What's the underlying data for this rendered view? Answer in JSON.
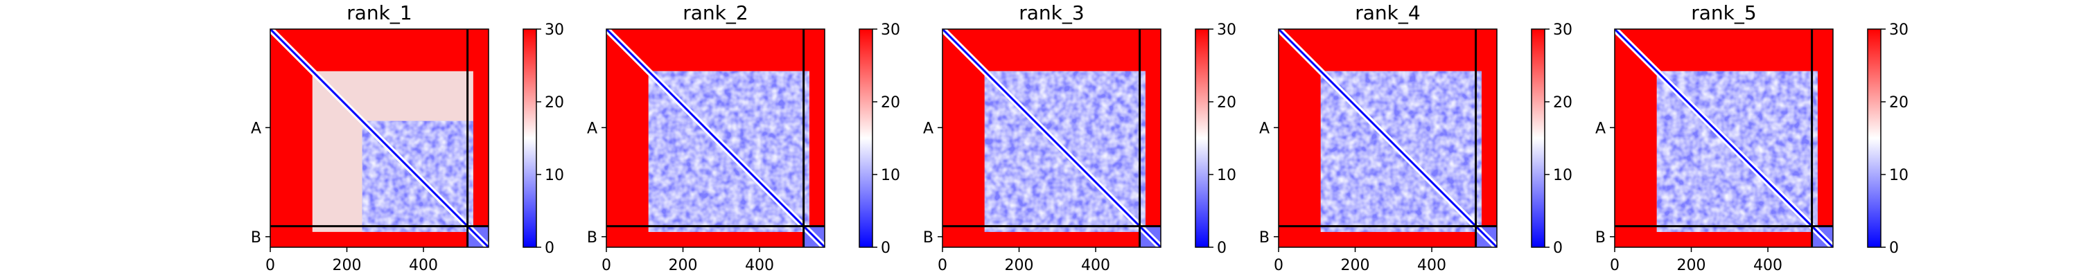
{
  "chart_data": {
    "type": "heatmap",
    "colormap": {
      "name": "bwr",
      "min": 0,
      "max": 30,
      "ticks": [
        0,
        10,
        20,
        30
      ],
      "colors": {
        "low": "#0000ff",
        "mid": "#ffffff",
        "high": "#ff0000"
      }
    },
    "x_range": [
      0,
      570
    ],
    "x_ticks": [
      0,
      200,
      400
    ],
    "chains": [
      {
        "label": "A",
        "start": 0,
        "end": 515
      },
      {
        "label": "B",
        "start": 515,
        "end": 570
      }
    ],
    "chain_boundary": 515,
    "panels": [
      {
        "title": "rank_1",
        "high_confidence_block": [
          240,
          530
        ],
        "mid_block": [
          110,
          530
        ]
      },
      {
        "title": "rank_2",
        "high_confidence_block": [
          110,
          530
        ],
        "mid_block": [
          110,
          530
        ]
      },
      {
        "title": "rank_3",
        "high_confidence_block": [
          110,
          530
        ],
        "mid_block": [
          110,
          530
        ]
      },
      {
        "title": "rank_4",
        "high_confidence_block": [
          110,
          530
        ],
        "mid_block": [
          110,
          530
        ]
      },
      {
        "title": "rank_5",
        "high_confidence_block": [
          110,
          530
        ],
        "mid_block": [
          110,
          530
        ]
      }
    ]
  }
}
